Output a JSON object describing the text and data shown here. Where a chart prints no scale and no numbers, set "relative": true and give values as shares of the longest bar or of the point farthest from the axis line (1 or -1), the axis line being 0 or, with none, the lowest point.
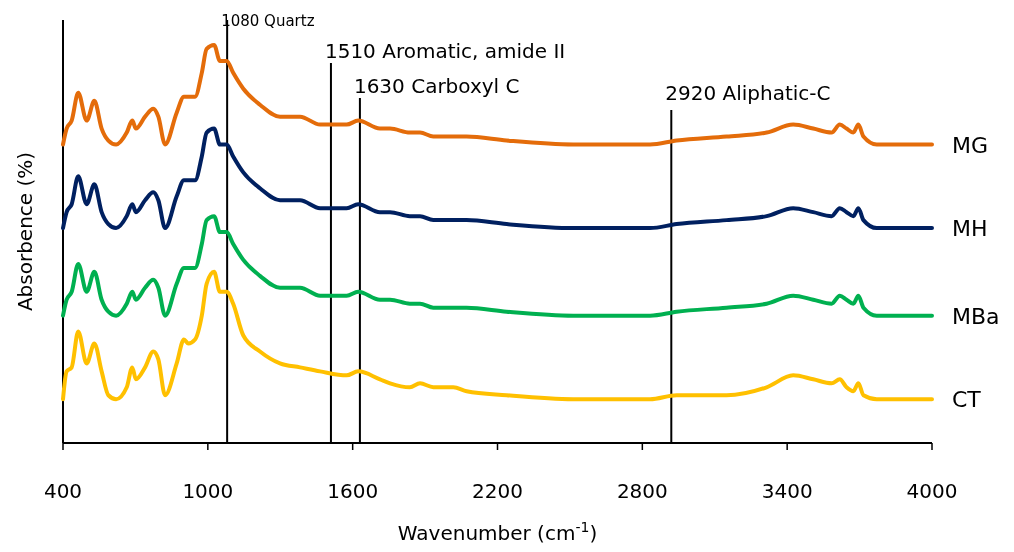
{
  "chart_data": {
    "type": "line",
    "relative": true,
    "xlabel": "Wavenumber (cm$^{-1}$)",
    "ylabel": "Absorbence (%)",
    "xlim": [
      400,
      4000
    ],
    "xticks": [
      400,
      1000,
      1600,
      2200,
      2800,
      3400,
      4000
    ],
    "grid": false,
    "legend": false,
    "marker": "none",
    "line_style": "solid",
    "x": [
      400,
      415,
      436,
      463,
      498,
      530,
      560,
      588,
      620,
      664,
      687,
      702,
      740,
      774,
      795,
      823,
      871,
      901,
      919,
      947,
      975,
      995,
      1026,
      1050,
      1078,
      1105,
      1147,
      1216,
      1299,
      1382,
      1465,
      1575,
      1623,
      1713,
      1755,
      1837,
      1879,
      1934,
      2017,
      2072,
      2238,
      2514,
      2832,
      2942,
      3149,
      3315,
      3425,
      3508,
      3584,
      3618,
      3646,
      3674,
      3695,
      3716,
      3771,
      4000
    ],
    "series": [
      {
        "name": "MG",
        "color": "#e46c0a",
        "values": [
          0.75,
          0.79,
          0.81,
          0.88,
          0.81,
          0.86,
          0.79,
          0.76,
          0.75,
          0.78,
          0.81,
          0.79,
          0.82,
          0.84,
          0.82,
          0.75,
          0.83,
          0.87,
          0.87,
          0.87,
          0.93,
          0.99,
          1,
          0.96,
          0.96,
          0.93,
          0.89,
          0.85,
          0.82,
          0.82,
          0.8,
          0.8,
          0.81,
          0.79,
          0.79,
          0.78,
          0.78,
          0.77,
          0.77,
          0.77,
          0.76,
          0.75,
          0.75,
          0.76,
          0.77,
          0.78,
          0.8,
          0.79,
          0.78,
          0.8,
          0.79,
          0.78,
          0.8,
          0.77,
          0.75,
          0.75
        ]
      },
      {
        "name": "MH",
        "color": "#002060",
        "values": [
          0.54,
          0.58,
          0.6,
          0.67,
          0.6,
          0.65,
          0.58,
          0.55,
          0.54,
          0.57,
          0.6,
          0.58,
          0.61,
          0.63,
          0.61,
          0.54,
          0.62,
          0.66,
          0.66,
          0.66,
          0.72,
          0.78,
          0.79,
          0.75,
          0.75,
          0.72,
          0.68,
          0.64,
          0.61,
          0.61,
          0.59,
          0.59,
          0.6,
          0.58,
          0.58,
          0.57,
          0.57,
          0.56,
          0.56,
          0.56,
          0.55,
          0.54,
          0.54,
          0.55,
          0.56,
          0.57,
          0.59,
          0.58,
          0.57,
          0.59,
          0.58,
          0.57,
          0.59,
          0.56,
          0.54,
          0.54
        ]
      },
      {
        "name": "MBa",
        "color": "#00b050",
        "values": [
          0.32,
          0.36,
          0.38,
          0.45,
          0.38,
          0.43,
          0.36,
          0.33,
          0.32,
          0.35,
          0.38,
          0.36,
          0.39,
          0.41,
          0.39,
          0.32,
          0.4,
          0.44,
          0.44,
          0.44,
          0.5,
          0.56,
          0.57,
          0.53,
          0.53,
          0.5,
          0.46,
          0.42,
          0.39,
          0.39,
          0.37,
          0.37,
          0.38,
          0.36,
          0.36,
          0.35,
          0.35,
          0.34,
          0.34,
          0.34,
          0.33,
          0.32,
          0.32,
          0.33,
          0.34,
          0.35,
          0.37,
          0.36,
          0.35,
          0.37,
          0.36,
          0.35,
          0.37,
          0.34,
          0.32,
          0.32
        ]
      },
      {
        "name": "CT",
        "color": "#ffc000",
        "values": [
          0.11,
          0.18,
          0.19,
          0.28,
          0.2,
          0.25,
          0.18,
          0.12,
          0.11,
          0.14,
          0.19,
          0.16,
          0.19,
          0.23,
          0.21,
          0.12,
          0.2,
          0.26,
          0.25,
          0.26,
          0.32,
          0.4,
          0.43,
          0.38,
          0.38,
          0.35,
          0.27,
          0.23,
          0.2,
          0.19,
          0.18,
          0.17,
          0.18,
          0.16,
          0.15,
          0.14,
          0.15,
          0.14,
          0.14,
          0.13,
          0.12,
          0.11,
          0.11,
          0.12,
          0.12,
          0.14,
          0.17,
          0.16,
          0.15,
          0.16,
          0.14,
          0.13,
          0.15,
          0.12,
          0.11,
          0.11
        ]
      }
    ],
    "ref_lines": [
      {
        "axis": "x",
        "value": 1080,
        "label": "1080 Quartz",
        "color": "#000000"
      },
      {
        "axis": "x",
        "value": 1510,
        "label": "1510 Aromatic, amide II",
        "color": "#000000"
      },
      {
        "axis": "x",
        "value": 1630,
        "label": "1630 Carboxyl C",
        "color": "#000000"
      },
      {
        "axis": "x",
        "value": 2920,
        "label": "2920 Aliphatic-C",
        "color": "#000000"
      }
    ]
  }
}
